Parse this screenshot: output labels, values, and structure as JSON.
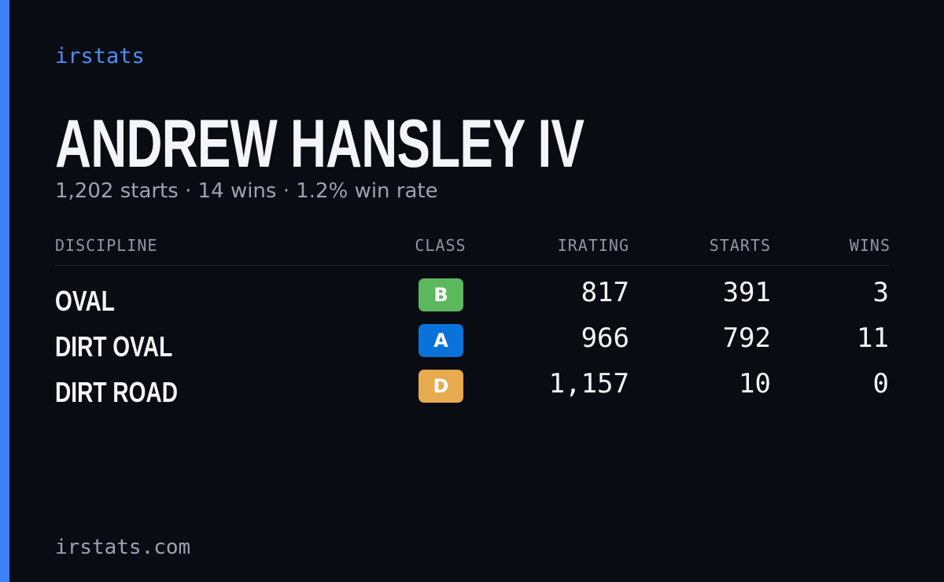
{
  "brand": "irstats",
  "driver": {
    "name": "ANDREW HANSLEY IV",
    "summary": "1,202 starts · 14 wins · 1.2% win rate"
  },
  "table": {
    "headers": [
      "DISCIPLINE",
      "CLASS",
      "IRATING",
      "STARTS",
      "WINS"
    ],
    "rows": [
      {
        "discipline": "OVAL",
        "class": "B",
        "color": "#5cb85c",
        "irating": "817",
        "starts": "391",
        "wins": "3"
      },
      {
        "discipline": "DIRT OVAL",
        "class": "A",
        "color": "#0b72d9",
        "irating": "966",
        "starts": "792",
        "wins": "11"
      },
      {
        "discipline": "DIRT ROAD",
        "class": "D",
        "color": "#e8aa4e",
        "irating": "1,157",
        "starts": "10",
        "wins": "0"
      }
    ]
  },
  "footer": "irstats.com"
}
